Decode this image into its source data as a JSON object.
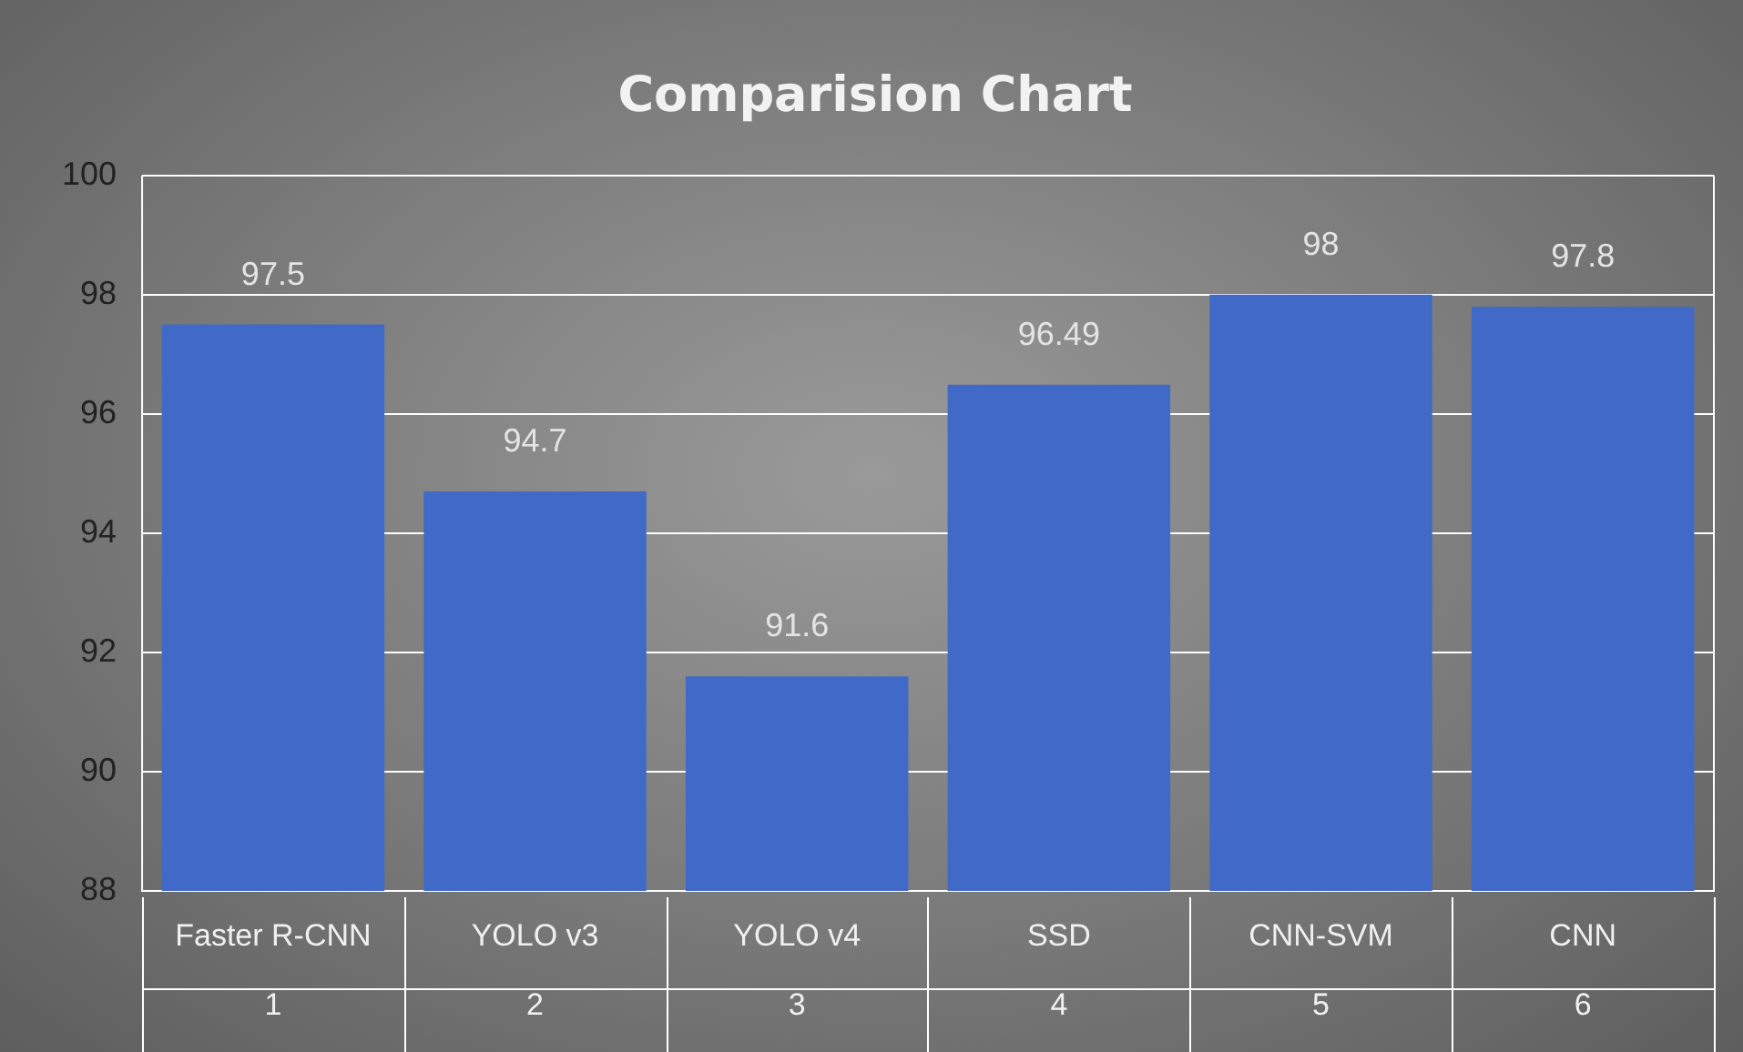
{
  "chart_data": {
    "type": "bar",
    "title": "Comparision Chart",
    "categories": [
      "Faster R-CNN\n1",
      "YOLO v3\n2",
      "YOLO v4\n3",
      "SSD\n4",
      "CNN-SVM\n5",
      "CNN\n6"
    ],
    "values": [
      97.5,
      94.7,
      91.6,
      96.49,
      98,
      97.8
    ],
    "color": "#416ac8",
    "ylim": [
      88,
      100
    ],
    "yticks": [
      88,
      90,
      92,
      94,
      96,
      98,
      100
    ],
    "grid": "y",
    "data_labels": true
  }
}
